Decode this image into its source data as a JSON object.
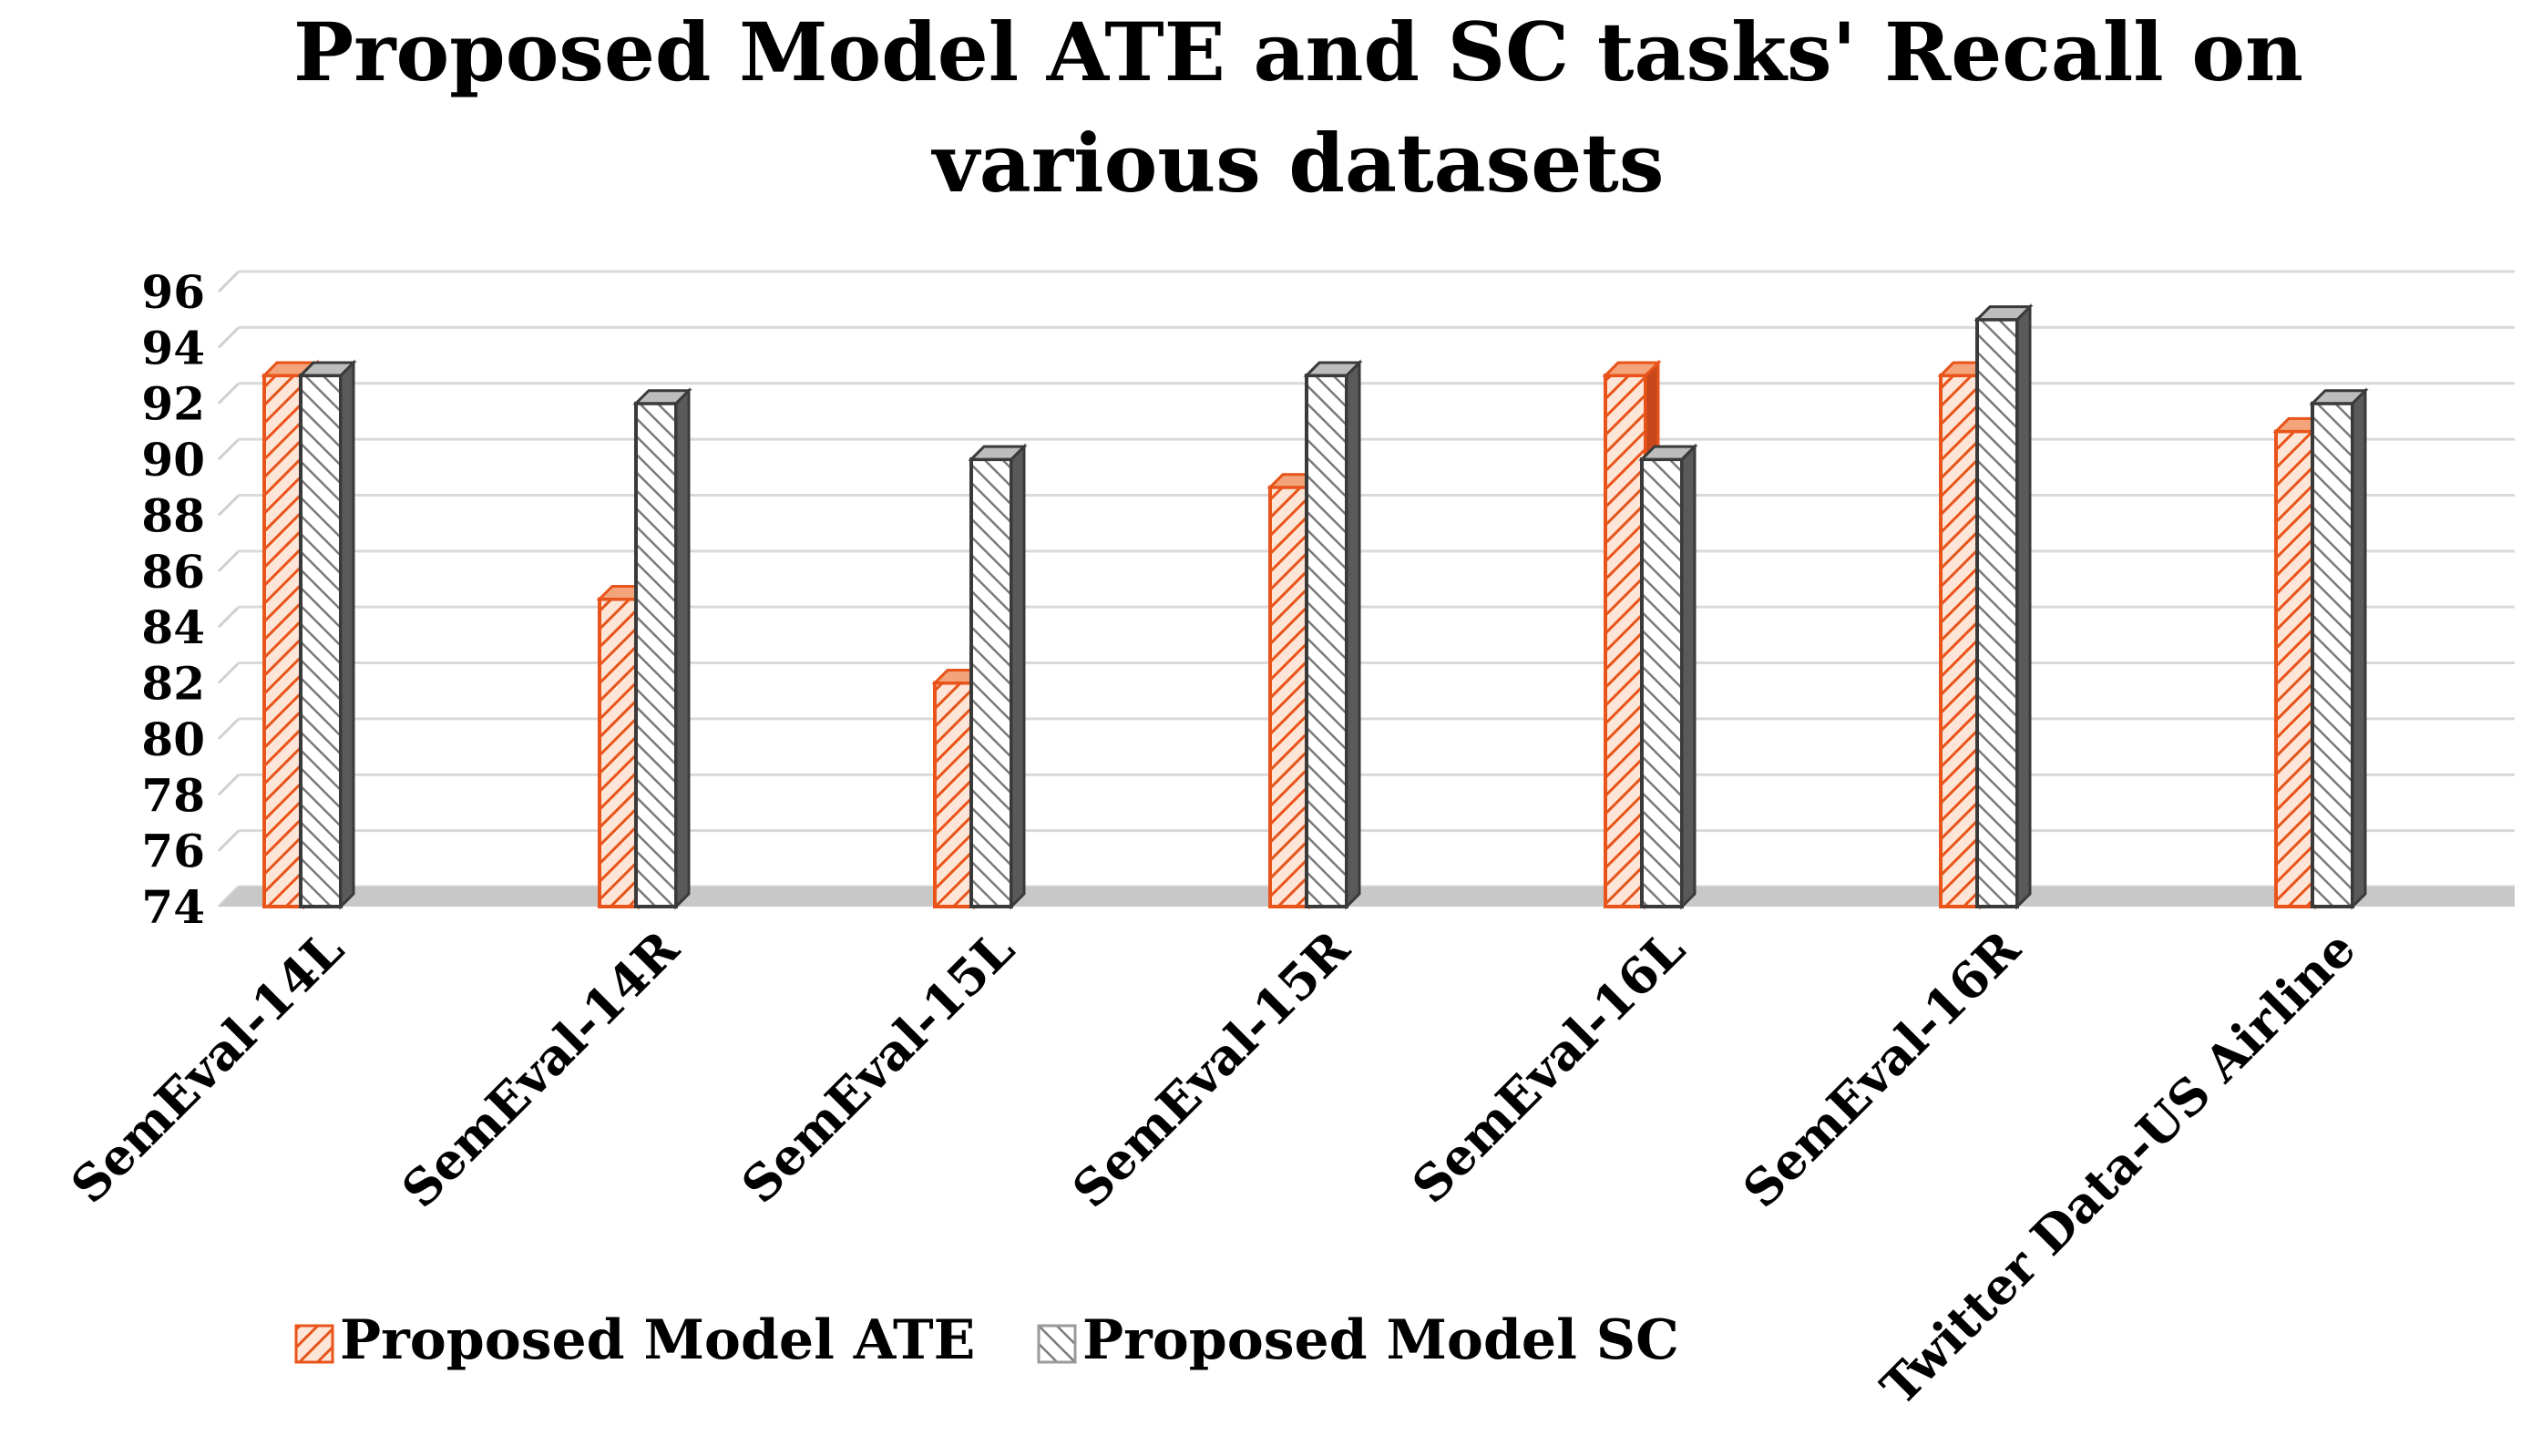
{
  "chart_data": {
    "type": "bar",
    "title_lines": [
      "Proposed Model ATE and SC tasks' Recall on",
      "various datasets"
    ],
    "categories": [
      "SemEval-14L",
      "SemEval-14R",
      "SemEval-15L",
      "SemEval-15R",
      "SemEval-16L",
      "SemEval-16R",
      "Twitter Data-US Airline"
    ],
    "series": [
      {
        "name": "Proposed Model ATE",
        "values": [
          93,
          85,
          82,
          89,
          93,
          93,
          91
        ],
        "color": "#e8541a"
      },
      {
        "name": "Proposed Model SC",
        "values": [
          93,
          92,
          90,
          93,
          90,
          95,
          92
        ],
        "color": "#3a3a3a"
      }
    ],
    "yticks": [
      "74",
      "76",
      "78",
      "80",
      "82",
      "84",
      "86",
      "88",
      "90",
      "92",
      "94",
      "96"
    ],
    "ylim": [
      74,
      96
    ],
    "xlabel": "",
    "ylabel": "",
    "grid": true,
    "legend_position": "bottom"
  }
}
